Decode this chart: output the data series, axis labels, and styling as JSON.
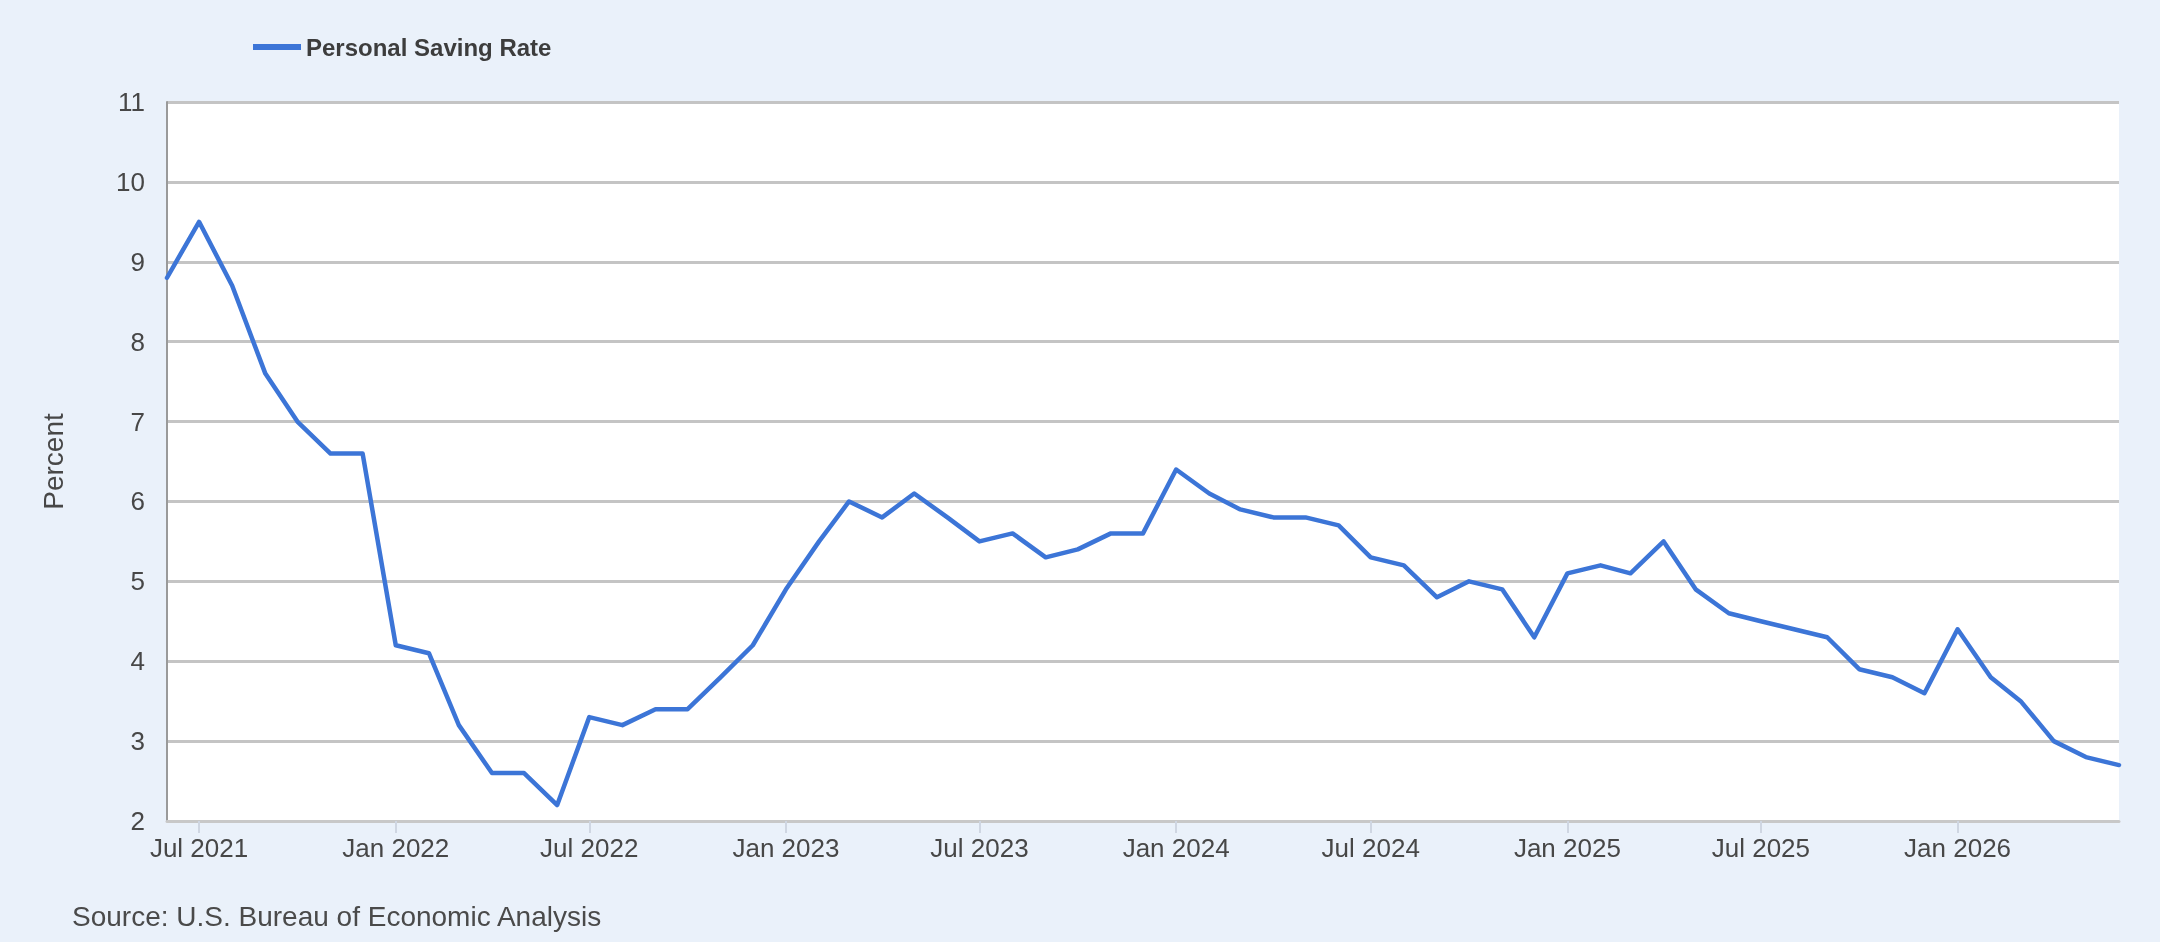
{
  "chart_data": {
    "type": "line",
    "ylabel": "Percent",
    "annotations": [
      "Source: U.S. Bureau of Economic Analysis"
    ],
    "x": [
      "2021-06",
      "2021-07",
      "2021-08",
      "2021-09",
      "2021-10",
      "2021-11",
      "2021-12",
      "2022-01",
      "2022-02",
      "2022-03",
      "2022-04",
      "2022-05",
      "2022-06",
      "2022-07",
      "2022-08",
      "2022-09",
      "2022-10",
      "2022-11",
      "2022-12",
      "2023-01",
      "2023-02",
      "2023-03",
      "2023-04",
      "2023-05",
      "2023-06",
      "2023-07",
      "2023-08",
      "2023-09",
      "2023-10",
      "2023-11",
      "2023-12",
      "2024-01",
      "2024-02",
      "2024-03",
      "2024-04",
      "2024-05",
      "2024-06",
      "2024-07",
      "2024-08",
      "2024-09",
      "2024-10",
      "2024-11",
      "2024-12",
      "2025-01",
      "2025-02",
      "2025-03",
      "2025-04",
      "2025-05",
      "2025-06",
      "2025-07",
      "2025-08",
      "2025-09",
      "2025-10",
      "2025-11",
      "2025-12",
      "2026-01",
      "2026-02",
      "2026-03",
      "2026-04",
      "2026-05",
      "2026-06"
    ],
    "series": [
      {
        "name": "Personal Saving Rate",
        "color": "#3c75d7",
        "values": [
          8.8,
          9.5,
          8.7,
          7.6,
          7.0,
          6.6,
          6.6,
          4.2,
          4.1,
          3.2,
          2.6,
          2.6,
          2.2,
          3.3,
          3.2,
          3.4,
          3.4,
          3.8,
          4.2,
          4.9,
          5.5,
          6.0,
          5.8,
          6.1,
          5.8,
          5.5,
          5.6,
          5.3,
          5.4,
          5.6,
          5.6,
          6.4,
          6.1,
          5.9,
          5.8,
          5.8,
          5.7,
          5.3,
          5.2,
          4.8,
          5.0,
          4.9,
          4.3,
          5.1,
          5.2,
          5.1,
          5.5,
          4.9,
          4.6,
          4.5,
          4.4,
          4.3,
          3.9,
          3.8,
          3.6,
          4.4,
          3.8,
          3.5,
          3.0,
          2.8,
          2.7
        ]
      }
    ],
    "xlim": [
      "2021-06",
      "2026-06"
    ],
    "xticks": [
      {
        "value": "2021-07",
        "label": "Jul 2021"
      },
      {
        "value": "2022-01",
        "label": "Jan 2022"
      },
      {
        "value": "2022-07",
        "label": "Jul 2022"
      },
      {
        "value": "2023-01",
        "label": "Jan 2023"
      },
      {
        "value": "2023-07",
        "label": "Jul 2023"
      },
      {
        "value": "2024-01",
        "label": "Jan 2024"
      },
      {
        "value": "2024-07",
        "label": "Jul 2024"
      },
      {
        "value": "2025-01",
        "label": "Jan 2025"
      },
      {
        "value": "2025-07",
        "label": "Jul 2025"
      },
      {
        "value": "2026-01",
        "label": "Jan 2026"
      }
    ],
    "ylim": [
      2,
      11
    ],
    "yticks": [
      2,
      3,
      4,
      5,
      6,
      7,
      8,
      9,
      10,
      11
    ],
    "grid": "y",
    "legend": "top left",
    "marker": "none",
    "line_style": "solid"
  }
}
